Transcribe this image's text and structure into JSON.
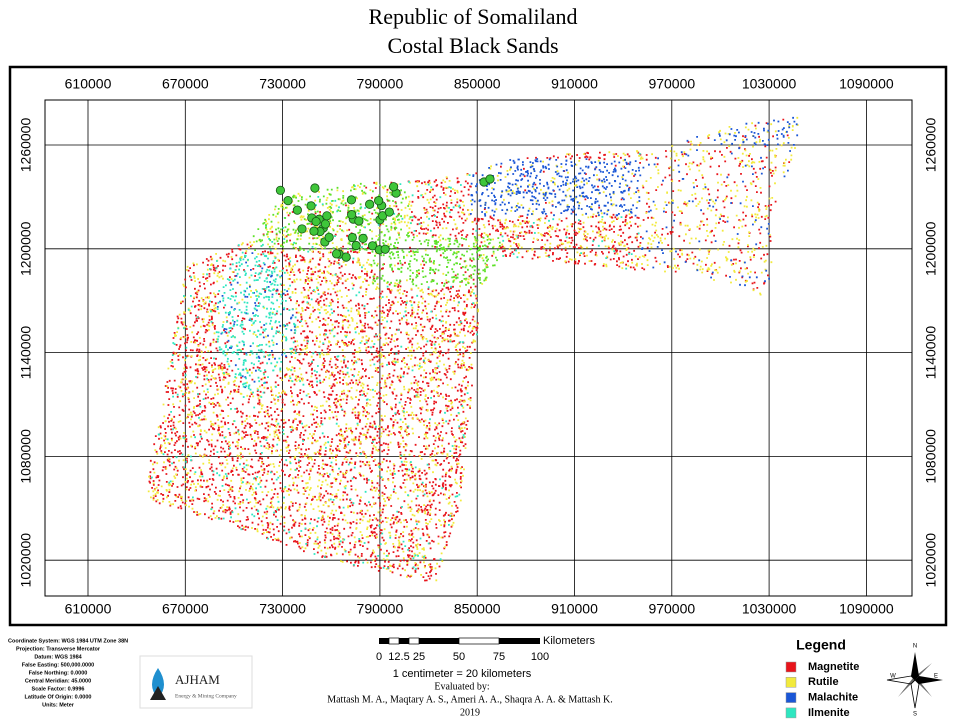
{
  "title": [
    "Republic of Somaliland",
    "Costal Black Sands"
  ],
  "map": {
    "xticks": [
      "610000",
      "670000",
      "730000",
      "790000",
      "850000",
      "910000",
      "970000",
      "1030000",
      "1090000"
    ],
    "yticks": [
      "1260000",
      "1200000",
      "1140000",
      "1080000",
      "1020000"
    ]
  },
  "coordinate_info": [
    "Coordinate System: WGS 1984 UTM Zone 38N",
    "Projection: Transverse Mercator",
    "Datum: WGS 1984",
    "False Easting: 500,000.0000",
    "False Northing: 0.0000",
    "Central Meridian: 45.0000",
    "Scale Factor: 0.9996",
    "Latitude Of Origin: 0.0000",
    "Units: Meter"
  ],
  "logo": {
    "name": "AJHAM",
    "tagline": "Energy & Mining Company"
  },
  "scale_bar": {
    "unit": "Kilometers",
    "labels": [
      "0",
      "12.5",
      "25",
      "50",
      "75",
      "100"
    ],
    "ratio": "1 centimeter = 20 kilometers"
  },
  "credits": {
    "label": "Evaluated by:",
    "authors": "Mattash M. A., Maqtary A. S., Ameri A. A., Shaqra A. A. &  Mattash K.",
    "year": "2019"
  },
  "legend": {
    "title": "Legend",
    "items": [
      {
        "name": "Magnetite",
        "color": "#e8141b"
      },
      {
        "name": "Rutile",
        "color": "#f2ea3c"
      },
      {
        "name": "Malachite",
        "color": "#1a56d6"
      },
      {
        "name": "Ilmenite",
        "color": "#2ee6c0"
      }
    ]
  },
  "north_arrow": {
    "n": "N",
    "e": "E",
    "s": "S",
    "w": "W"
  }
}
